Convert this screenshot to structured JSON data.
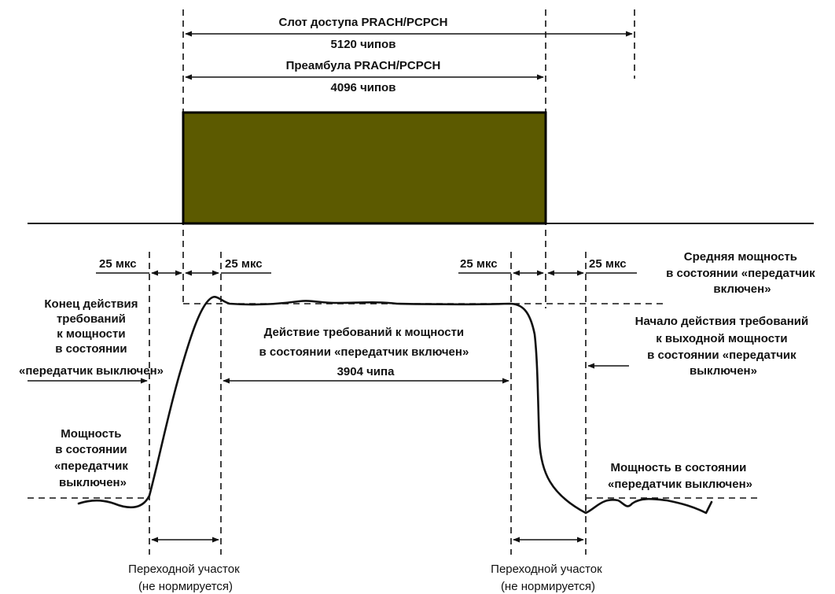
{
  "colors": {
    "preamble_fill": "#5c5a00",
    "line": "#111111",
    "background": "#ffffff"
  },
  "top": {
    "slot_label": "Слот доступа PRACH/PCPCH",
    "slot_length": "5120 чипов",
    "preamble_label": "Преамбула PRACH/PCPCH",
    "preamble_length": "4096 чипов"
  },
  "intervals": {
    "t1": "25 мкс",
    "t2": "25 мкс",
    "t3": "25 мкс",
    "t4": "25 мкс"
  },
  "left": {
    "end_req": [
      "Конец действия",
      "требований",
      "к мощности",
      "в состоянии",
      "«передатчик выключен»"
    ],
    "off_power": [
      "Мощность",
      "в состоянии",
      "«передатчик",
      "выключен»"
    ]
  },
  "center": {
    "on_req": [
      "Действие требований к мощности",
      "в состоянии «передатчик включен»"
    ],
    "on_req_length": "3904 чипа"
  },
  "right": {
    "avg_power": [
      "Средняя мощность",
      "в состоянии «передатчик",
      "включен»"
    ],
    "start_req": [
      "Начало действия требований",
      "к выходной мощности",
      "в состоянии «передатчик",
      "выключен»"
    ],
    "off_power": [
      "Мощность в состоянии",
      "«передатчик выключен»"
    ]
  },
  "bottom": {
    "transition_left": [
      "Переходной участок",
      "(не нормируется)"
    ],
    "transition_right": [
      "Переходной участок",
      "(не нормируется)"
    ]
  }
}
